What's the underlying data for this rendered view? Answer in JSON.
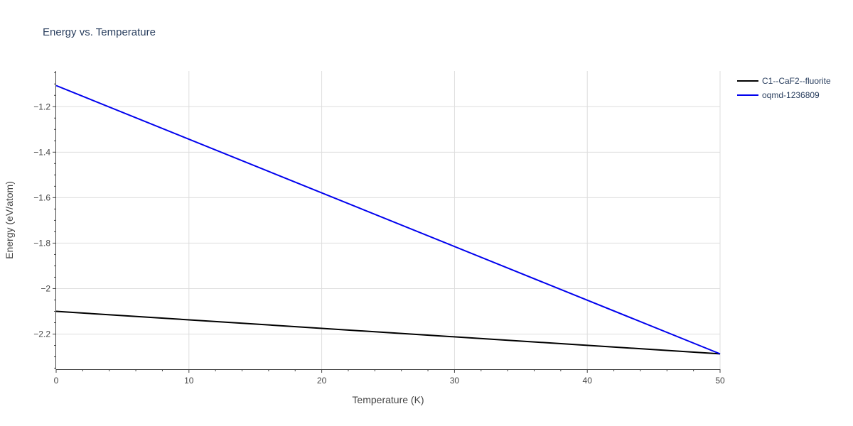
{
  "chart_data": {
    "type": "line",
    "title": "Energy vs. Temperature",
    "xlabel": "Temperature (K)",
    "ylabel": "Energy (eV/atom)",
    "xlim": [
      0,
      50
    ],
    "ylim": [
      -2.3545,
      -1.043
    ],
    "x_ticks": [
      0,
      10,
      20,
      30,
      40,
      50
    ],
    "y_ticks": [
      -1.2,
      -1.4,
      -1.6,
      -1.8,
      -2,
      -2.2
    ],
    "x_tick_labels": [
      "0",
      "10",
      "20",
      "30",
      "40",
      "50"
    ],
    "y_tick_labels": [
      "−1.2",
      "−1.4",
      "−1.6",
      "−1.8",
      "−2",
      "−2.2"
    ],
    "grid": true,
    "legend_position": "top-right",
    "series": [
      {
        "name": "C1--CaF2--fluorite",
        "color": "#000000",
        "x": [
          0,
          50
        ],
        "y": [
          -2.1,
          -2.287
        ]
      },
      {
        "name": "oqmd-1236809",
        "color": "#0000ee",
        "x": [
          0,
          50
        ],
        "y": [
          -1.107,
          -2.287
        ]
      }
    ]
  }
}
